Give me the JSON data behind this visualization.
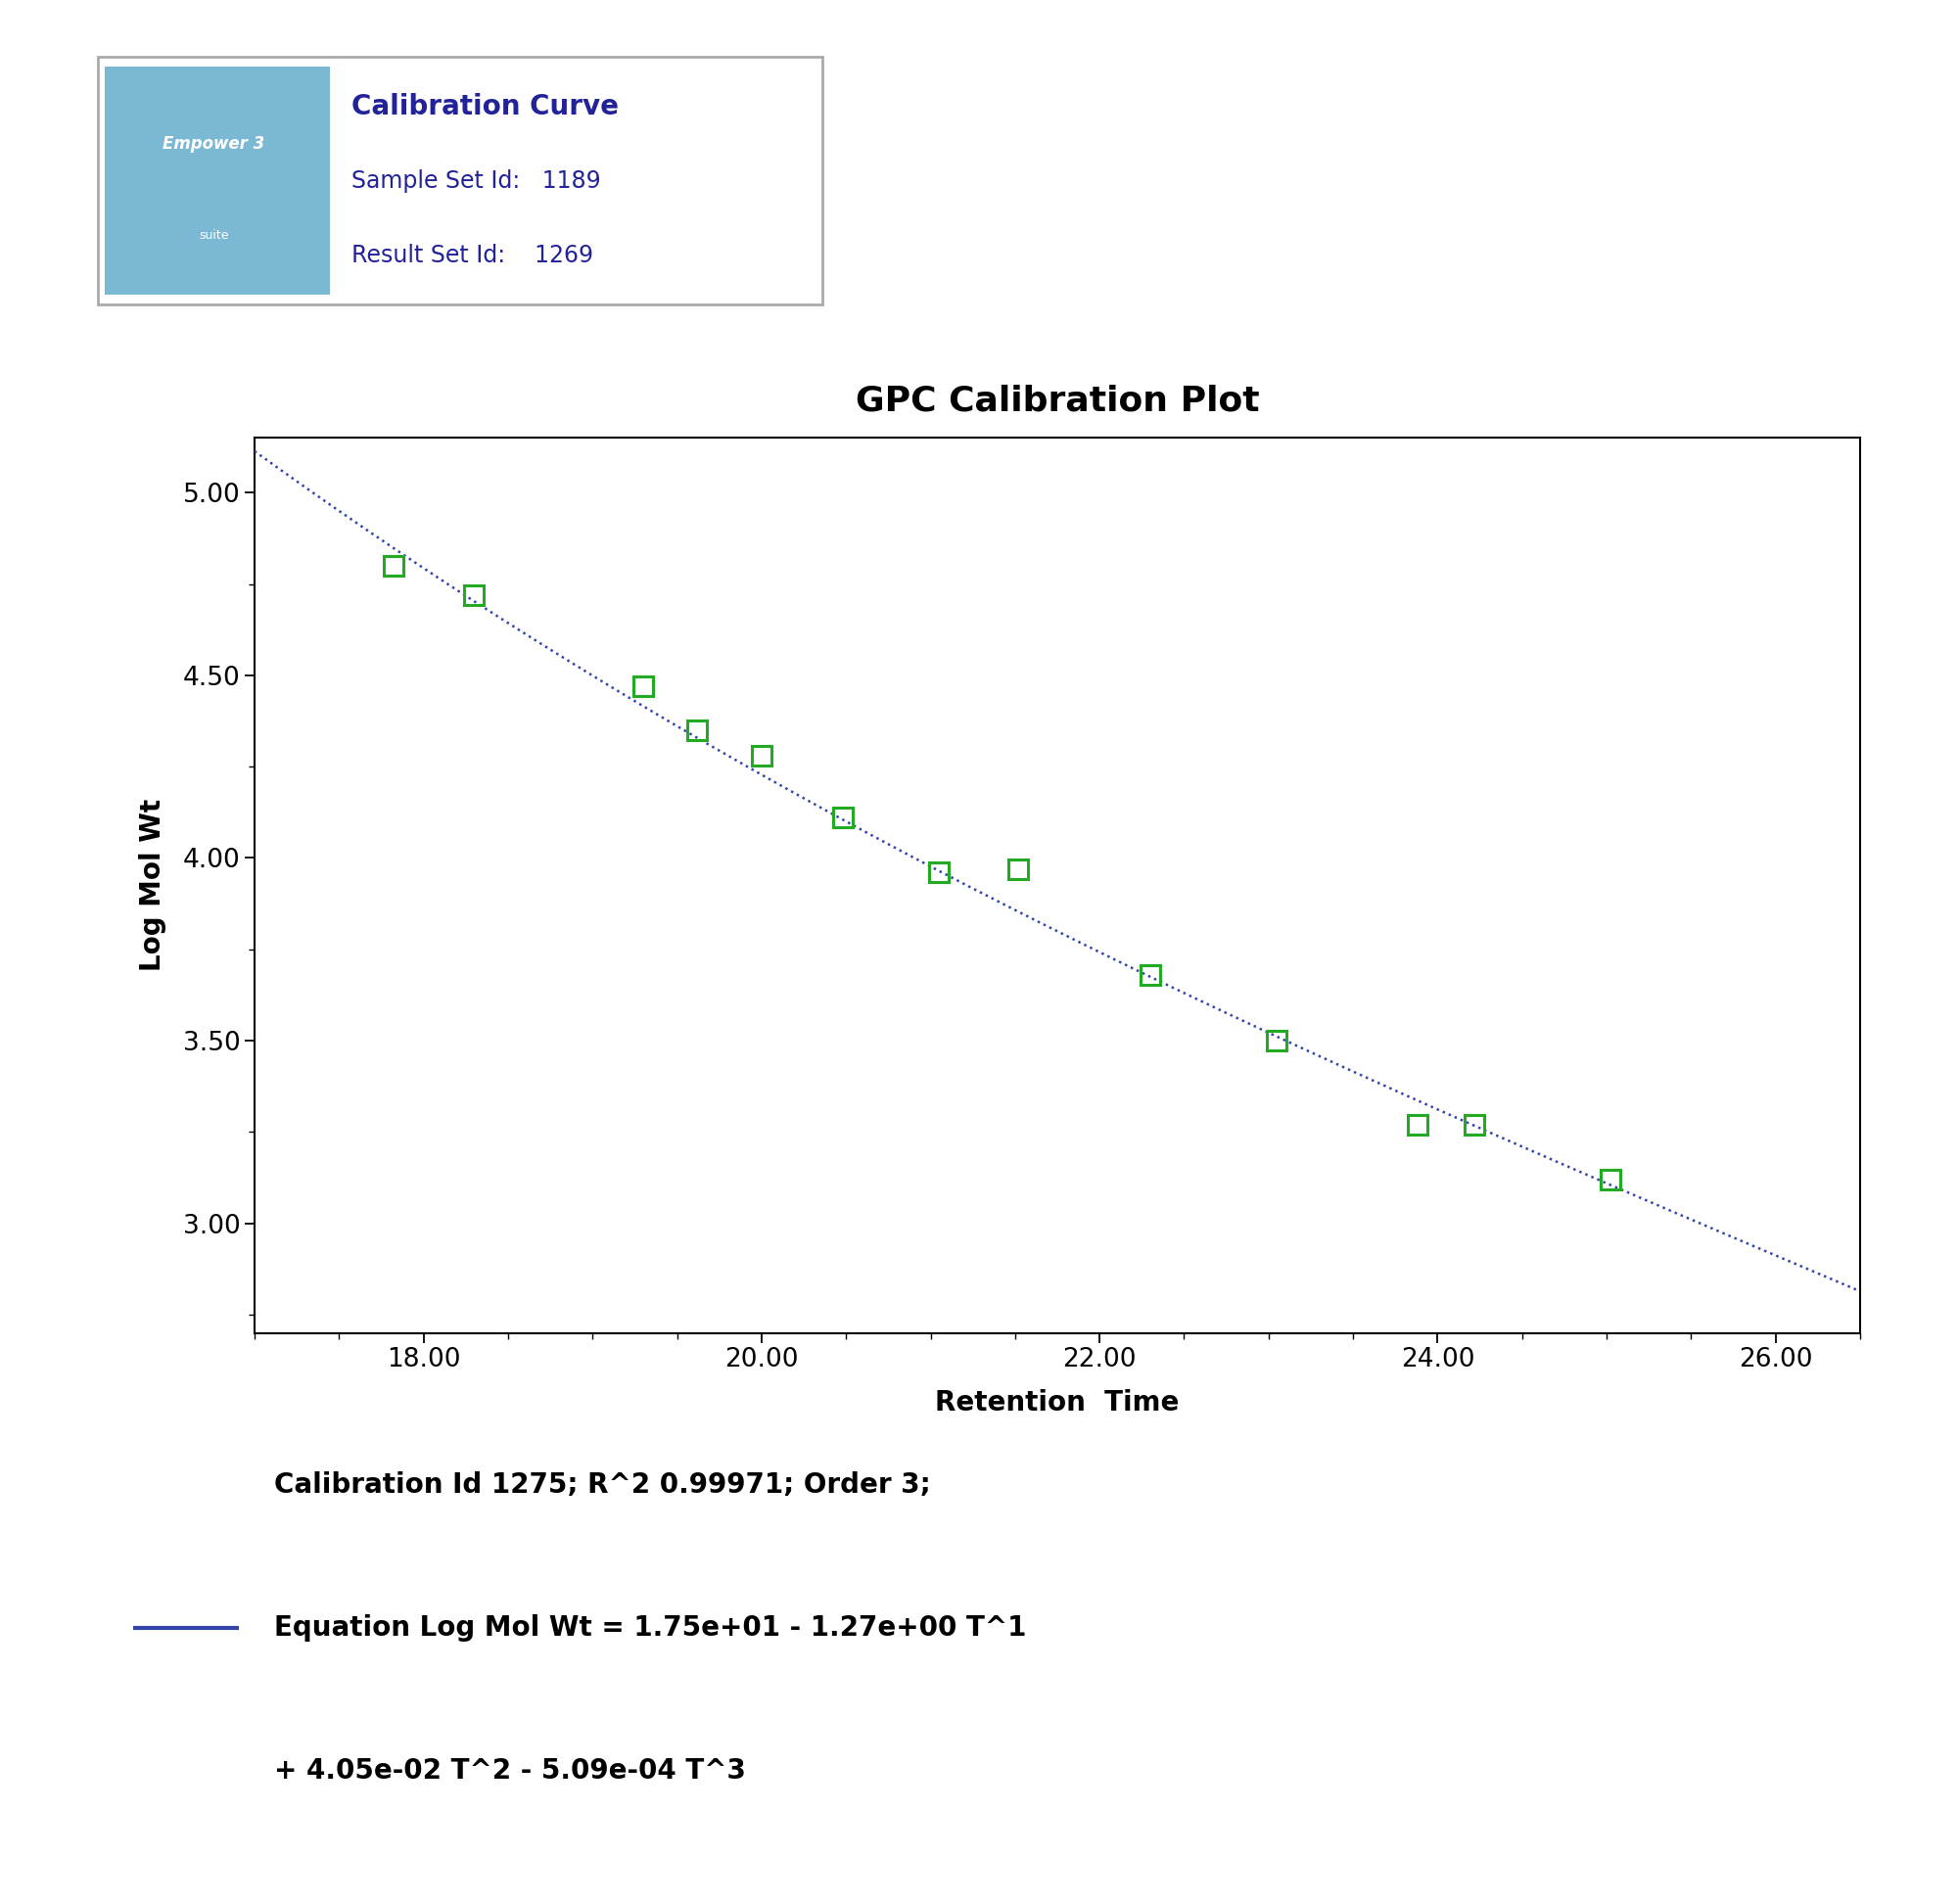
{
  "title": "GPC Calibration Plot",
  "xlabel": "Retention  Time",
  "ylabel": "Log Mol Wt",
  "data_points_x": [
    17.82,
    18.3,
    19.3,
    19.62,
    20.0,
    20.48,
    21.05,
    21.52,
    22.3,
    23.05,
    23.88,
    24.22,
    25.02
  ],
  "data_points_y": [
    4.8,
    4.72,
    4.47,
    4.35,
    4.28,
    4.11,
    3.96,
    3.97,
    3.68,
    3.5,
    3.27,
    3.27,
    3.12
  ],
  "curve_xmin": 17.0,
  "curve_xmax": 26.5,
  "poly_coeffs": [
    17.5,
    -1.27,
    0.0405,
    -0.000509
  ],
  "xlim": [
    17.0,
    26.5
  ],
  "ylim": [
    2.7,
    5.15
  ],
  "xticks": [
    18.0,
    20.0,
    22.0,
    24.0,
    26.0
  ],
  "yticks": [
    3.0,
    3.5,
    4.0,
    4.5,
    5.0
  ],
  "line_color": "#3344aa",
  "marker_color": "#22aa22",
  "background_color": "#ffffff",
  "title_fontsize": 26,
  "label_fontsize": 20,
  "tick_fontsize": 19,
  "header_title": "Calibration Curve",
  "header_sample_set_id": "1189",
  "header_result_set_id": "1269",
  "legend_text_line1": "Calibration Id 1275; R^2 0.99971; Order 3;",
  "legend_text_line2": "Equation Log Mol Wt = 1.75e+01 - 1.27e+00 T^1",
  "legend_text_line3": "+ 4.05e-02 T^2 - 5.09e-04 T^3",
  "legend_fontsize": 20,
  "logo_text1": "Empower 3",
  "logo_text2": "suite",
  "logo_bg_color": "#7ab8d4",
  "header_text_color": "#222299",
  "header_fontsize": 20,
  "header_sub_fontsize": 17
}
